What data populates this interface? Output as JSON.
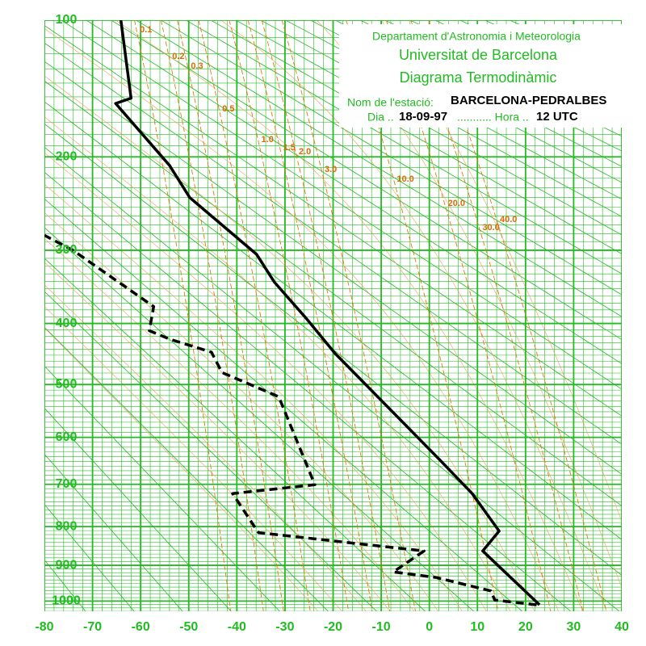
{
  "chart_data": {
    "type": "thermodynamic",
    "yscale": "stuve",
    "xlim": [
      -80,
      40
    ],
    "xticks": [
      -80,
      -70,
      -60,
      -50,
      -40,
      -30,
      -20,
      -10,
      0,
      10,
      20,
      30,
      40
    ],
    "ylim": [
      100,
      1030
    ],
    "yticks": [
      100,
      200,
      300,
      400,
      500,
      600,
      700,
      800,
      900,
      1000
    ],
    "grid": true,
    "grid_color": "#22bb22",
    "mixing_ratio_color": "#e07a10",
    "mixing_ratios": [
      0.1,
      0.2,
      0.3,
      0.5,
      {
        "value": 1,
        "label": "1.0"
      },
      1.5,
      {
        "value": 2,
        "label": "2.0"
      },
      {
        "value": 3,
        "label": "3.0"
      },
      {
        "value": 10,
        "label": "10.0"
      },
      {
        "value": 20,
        "label": "20.0"
      },
      {
        "value": 30,
        "label": "30.0"
      },
      {
        "value": 40,
        "label": "40.0"
      }
    ],
    "header": {
      "institution": "Departament d'Astronomia i Meteorologia",
      "university": "Universitat de Barcelona",
      "title": "Diagrama Termodinàmic",
      "station_label": "Nom de l'estació:",
      "station": "BARCELONA-PEDRALBES",
      "date_label": "Dia ..",
      "date": "18-09-97",
      "hour_label": "........... Hora ..",
      "hour": "12 UTC"
    },
    "series": [
      {
        "style": "solid",
        "color": "#000000",
        "pressure": [
          1011,
          862,
          811,
          721,
          647,
          447,
          393,
          341,
          305,
          240,
          208,
          155,
          151,
          100
        ],
        "values": [
          22.9,
          11.1,
          14.5,
          8.9,
          2.2,
          -19.6,
          -25.5,
          -32.2,
          -35.9,
          -49.8,
          -54,
          -65.2,
          -62,
          -64.1
        ]
      },
      {
        "style": "dashed",
        "color": "#000000",
        "pressure": [
          1011,
          997,
          971,
          933,
          918,
          862,
          815,
          721,
          701,
          522,
          479,
          445,
          424,
          411,
          375,
          300,
          282
        ],
        "values": [
          22.3,
          13.6,
          12.8,
          1.4,
          -7.5,
          -1.1,
          -35.5,
          -40.9,
          -23.8,
          -31.3,
          -43.1,
          -45.3,
          -54,
          -58.2,
          -57.3,
          -74.1,
          -80
        ]
      }
    ]
  }
}
